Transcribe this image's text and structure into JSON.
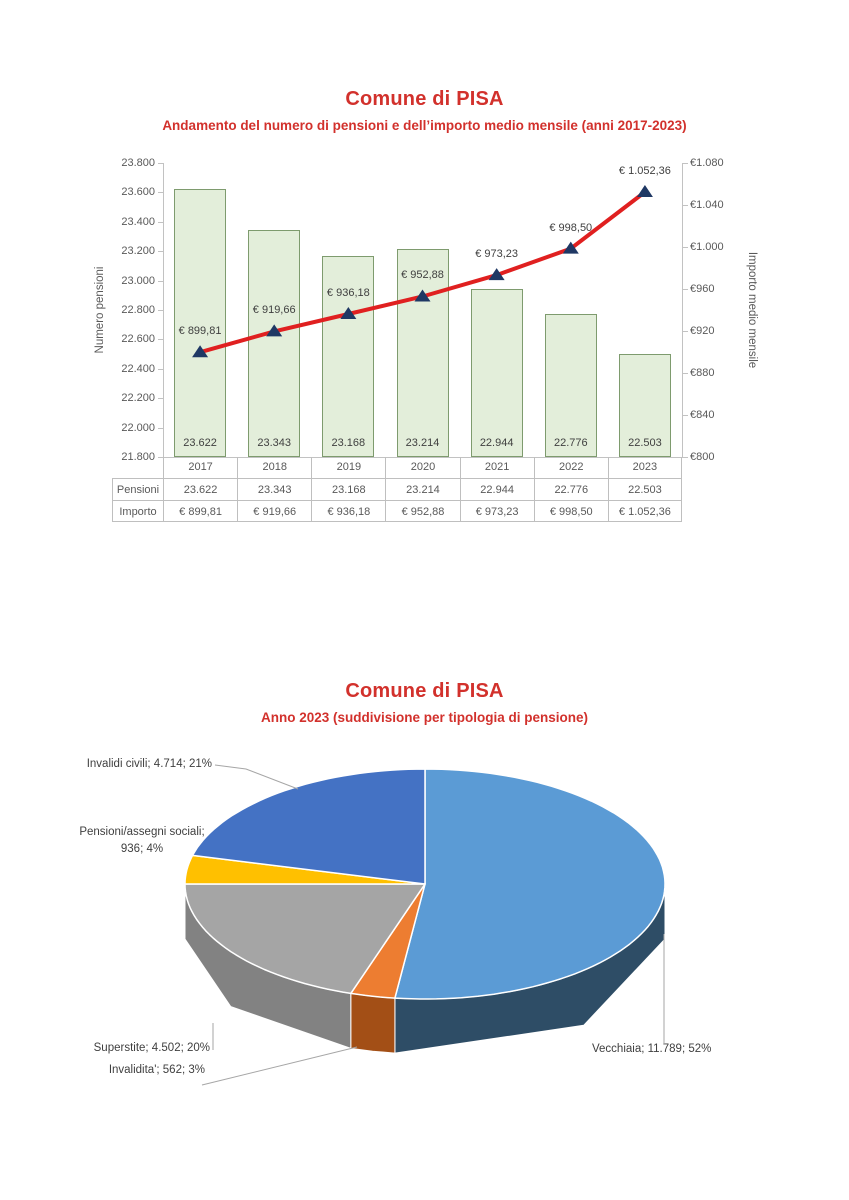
{
  "colors": {
    "title_red": "#d2312c",
    "bar_fill": "#e3eeda",
    "bar_border": "#7e9b6e",
    "line_red": "#e02020",
    "marker_navy": "#1f3864",
    "axis_text": "#595959",
    "grid_gray": "#c2c2c2",
    "table_border": "#bfbfbf",
    "leader_gray": "#a6a6a6"
  },
  "chart_data": [
    {
      "type": "bar",
      "subtype": "combo-bar-line-dual-axis",
      "title": "Comune di PISA",
      "subtitle": "Andamento del numero di pensioni e dell’importo medio mensile (anni 2017-2023)",
      "categories": [
        "2017",
        "2018",
        "2019",
        "2020",
        "2021",
        "2022",
        "2023"
      ],
      "series": [
        {
          "name": "Pensioni",
          "kind": "bar",
          "axis": "left",
          "values": [
            23622,
            23343,
            23168,
            23214,
            22944,
            22776,
            22503
          ],
          "labels": [
            "23.622",
            "23.343",
            "23.168",
            "23.214",
            "22.944",
            "22.776",
            "22.503"
          ]
        },
        {
          "name": "Importo",
          "kind": "line",
          "axis": "right",
          "values": [
            899.81,
            919.66,
            936.18,
            952.88,
            973.23,
            998.5,
            1052.36
          ],
          "labels": [
            "€ 899,81",
            "€ 919,66",
            "€ 936,18",
            "€ 952,88",
            "€ 973,23",
            "€ 998,50",
            "€ 1.052,36"
          ]
        }
      ],
      "y_left": {
        "label": "Numero pensioni",
        "min": 21800,
        "max": 23800,
        "step": 200,
        "ticks": [
          "23.800",
          "23.600",
          "23.400",
          "23.200",
          "23.000",
          "22.800",
          "22.600",
          "22.400",
          "22.200",
          "22.000",
          "21.800"
        ]
      },
      "y_right": {
        "label": "Importo medio mensile",
        "min": 800,
        "max": 1080,
        "step": 40,
        "ticks": [
          "€1.080",
          "€1.040",
          "€1.000",
          "€960",
          "€920",
          "€880",
          "€840",
          "€800"
        ]
      },
      "grid": false,
      "legend": "none",
      "table": {
        "row_headers": [
          "Pensioni",
          "Importo"
        ],
        "columns": [
          "2017",
          "2018",
          "2019",
          "2020",
          "2021",
          "2022",
          "2023"
        ],
        "rows": [
          [
            "23.622",
            "23.343",
            "23.168",
            "23.214",
            "22.944",
            "22.776",
            "22.503"
          ],
          [
            "€ 899,81",
            "€ 919,66",
            "€ 936,18",
            "€ 952,88",
            "€ 973,23",
            "€ 998,50",
            "€ 1.052,36"
          ]
        ]
      }
    },
    {
      "type": "pie",
      "subtype": "pie-3d",
      "title": "Comune di PISA",
      "subtitle": "Anno 2023 (suddivisione per tipologia di pensione)",
      "start_angle_deg": 0,
      "direction": "clockwise",
      "slices": [
        {
          "name": "Vecchiaia",
          "value": 11789,
          "pct": 52,
          "label": "Vecchiaia; 11.789; 52%",
          "label_lines": [
            "Vecchiaia; 11.789; 52%"
          ],
          "color": "#5b9bd5",
          "side_color": "#2e4d66"
        },
        {
          "name": "Invalidita'",
          "value": 562,
          "pct": 3,
          "label": "Invalidita'; 562; 3%",
          "label_lines": [
            "Invalidita'; 562; 3%"
          ],
          "color": "#ed7d31",
          "side_color": "#a34f16"
        },
        {
          "name": "Superstite",
          "value": 4502,
          "pct": 20,
          "label": "Superstite; 4.502; 20%",
          "label_lines": [
            "Superstite; 4.502; 20%"
          ],
          "color": "#a5a5a5",
          "side_color": "#828282"
        },
        {
          "name": "Pensioni/assegni sociali",
          "value": 936,
          "pct": 4,
          "label": "Pensioni/assegni sociali; 936; 4%",
          "label_lines": [
            "Pensioni/assegni sociali;",
            "936; 4%"
          ],
          "color": "#ffc000",
          "side_color": "#bf8f00"
        },
        {
          "name": "Invalidi civili",
          "value": 4714,
          "pct": 21,
          "label": "Invalidi civili; 4.714; 21%",
          "label_lines": [
            "Invalidi civili; 4.714; 21%"
          ],
          "color": "#4472c4",
          "side_color": "#2f5496"
        }
      ]
    }
  ]
}
